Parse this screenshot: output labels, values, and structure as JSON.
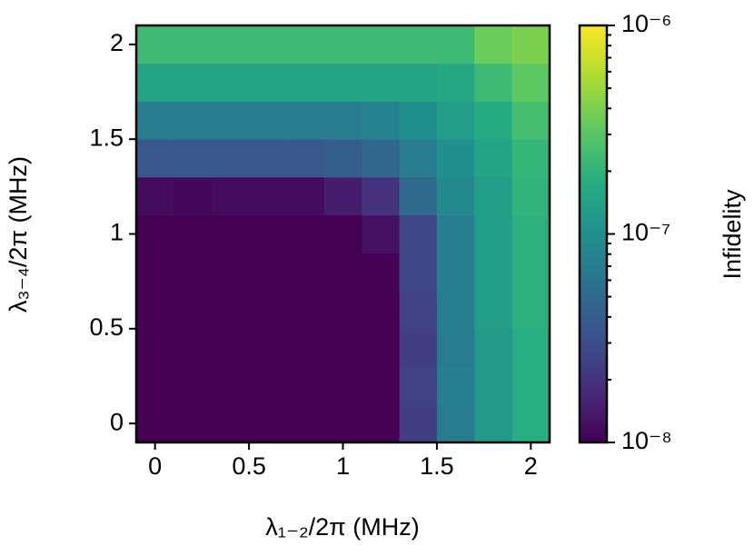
{
  "chart_data": {
    "type": "heatmap",
    "x_label": "λ₁₋₂/2π (MHz)",
    "y_label": "λ₃₋₄/2π (MHz)",
    "colorbar_label": "Infidelity",
    "colormap": "viridis",
    "x": [
      0,
      0.2,
      0.4,
      0.6,
      0.8,
      1.0,
      1.2,
      1.4,
      1.6,
      1.8,
      2.0
    ],
    "y": [
      0,
      0.2,
      0.4,
      0.6,
      0.8,
      1.0,
      1.2,
      1.4,
      1.6,
      1.8,
      2.0
    ],
    "z": [
      [
        1e-08,
        1e-08,
        1e-08,
        1e-08,
        1e-08,
        1e-08,
        1e-08,
        2.3e-08,
        6.9e-08,
        1.2e-07,
        1.8e-07
      ],
      [
        1e-08,
        1e-08,
        1e-08,
        1e-08,
        1e-08,
        1e-08,
        1e-08,
        2.5e-08,
        7.2e-08,
        1.2e-07,
        1.8e-07
      ],
      [
        1e-08,
        1e-08,
        1e-08,
        1e-08,
        1e-08,
        1e-08,
        1e-08,
        2.3e-08,
        6.9e-08,
        1.2e-07,
        1.8e-07
      ],
      [
        1e-08,
        1e-08,
        1e-08,
        1e-08,
        1e-08,
        1e-08,
        1e-08,
        2.5e-08,
        7.2e-08,
        1.26e-07,
        1.9e-07
      ],
      [
        1e-08,
        1e-08,
        1e-08,
        1e-08,
        1e-08,
        1e-08,
        1e-08,
        2.75e-08,
        7.2e-08,
        1.26e-07,
        1.9e-07
      ],
      [
        1e-08,
        1e-08,
        1e-08,
        1e-08,
        1e-08,
        1e-08,
        1.26e-08,
        2.75e-08,
        7.2e-08,
        1.26e-07,
        1.9e-07
      ],
      [
        1.15e-08,
        1.1e-08,
        1.15e-08,
        1.15e-08,
        1.15e-08,
        1.45e-08,
        2e-08,
        5e-08,
        8.7e-08,
        1.3e-07,
        2e-07
      ],
      [
        3.5e-08,
        3.5e-08,
        3.5e-08,
        3.5e-08,
        3.5e-08,
        4e-08,
        4.6e-08,
        6.9e-08,
        1e-07,
        1.45e-07,
        2.1e-07
      ],
      [
        6.9e-08,
        6.9e-08,
        6.9e-08,
        6.9e-08,
        6.9e-08,
        6.9e-08,
        7.9e-08,
        1e-07,
        1.26e-07,
        1.75e-07,
        2.5e-07
      ],
      [
        1.45e-07,
        1.45e-07,
        1.45e-07,
        1.45e-07,
        1.45e-07,
        1.45e-07,
        1.45e-07,
        1.45e-07,
        1.6e-07,
        2.3e-07,
        3.2e-07
      ],
      [
        2.3e-07,
        2.3e-07,
        2.3e-07,
        2.3e-07,
        2.3e-07,
        2.3e-07,
        2.3e-07,
        2.3e-07,
        2.3e-07,
        3.5e-07,
        4e-07
      ]
    ],
    "xlim": [
      -0.1,
      2.1
    ],
    "ylim": [
      -0.1,
      2.1
    ],
    "xticks": [
      0,
      0.5,
      1,
      1.5,
      2
    ],
    "yticks": [
      0,
      0.5,
      1,
      1.5,
      2
    ],
    "clim": [
      1e-08,
      1e-06
    ],
    "log_scale_color": true,
    "cticks": [
      {
        "value": 1e-08,
        "label": "10⁻⁸"
      },
      {
        "value": 1e-07,
        "label": "10⁻⁷"
      },
      {
        "value": 1e-06,
        "label": "10⁻⁶"
      }
    ],
    "cminorticks": [
      2e-08,
      3e-08,
      4e-08,
      5e-08,
      6e-08,
      7e-08,
      8e-08,
      9e-08,
      2e-07,
      3e-07,
      4e-07,
      5e-07,
      6e-07,
      7e-07,
      8e-07,
      9e-07
    ]
  }
}
